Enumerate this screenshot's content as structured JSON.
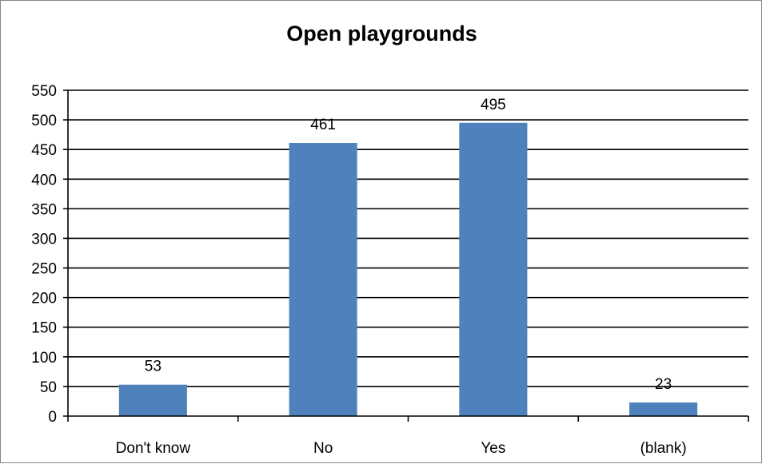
{
  "chart_data": {
    "type": "bar",
    "title": "Open playgrounds",
    "categories": [
      "Don't know",
      "No",
      "Yes",
      "(blank)"
    ],
    "values": [
      53,
      461,
      495,
      23
    ],
    "data_labels": [
      "53",
      "461",
      "495",
      "23"
    ],
    "ylim": [
      0,
      550
    ],
    "ytick_step": 50,
    "yticks": [
      "0",
      "50",
      "100",
      "150",
      "200",
      "250",
      "300",
      "350",
      "400",
      "450",
      "500",
      "550"
    ],
    "xlabel": "",
    "ylabel": "",
    "grid": true,
    "legend": "none",
    "bar_color": "#4f81bd"
  }
}
